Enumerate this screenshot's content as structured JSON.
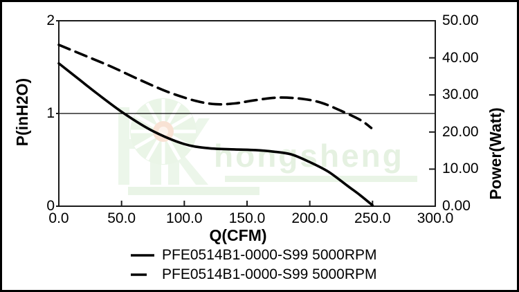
{
  "window": {
    "kind": "fan-performance-curve-figure"
  },
  "colors": {
    "background": "#ffffff",
    "border": "#000000",
    "axis": "#1a1a1a",
    "curve": "#000000",
    "gridline": "#000000"
  },
  "watermark": {
    "text": "hongsheng",
    "text_color": "#e5f1e1",
    "logo_letter_color": "#ecf6ea",
    "logo_wheel_color": "#eaf5e7",
    "logo_center_color": "#f8e2d4",
    "underline_color": "#e9f4e6"
  },
  "chart_data": {
    "type": "line",
    "title": "",
    "xlabel": "Q(CFM)",
    "ylabel_left": "P(inH2O)",
    "ylabel_right": "Power(Watt)",
    "xlim": [
      0,
      300
    ],
    "ylim_left": [
      0,
      2
    ],
    "ylim_right": [
      0,
      50
    ],
    "x_tick_values": [
      0,
      50,
      100,
      150,
      200,
      250,
      300
    ],
    "x_tick_labels": [
      "0.0",
      "50.0",
      "100.0",
      "150.0",
      "200.0",
      "250.0",
      "300.0"
    ],
    "y_left_tick_values": [
      2,
      1,
      0
    ],
    "y_left_tick_labels": [
      "2",
      "1",
      "0"
    ],
    "y_right_tick_values": [
      50,
      40,
      30,
      20,
      10,
      0
    ],
    "y_right_tick_labels": [
      "50.00",
      "40.00",
      "30.00",
      "20.00",
      "10.00",
      "0.00"
    ],
    "horizontal_gridline_at_left_value": 1,
    "grid": "single horizontal line at P=1 only",
    "legend_position": "bottom-center",
    "series": [
      {
        "name": "PFE0514B1-0000-S99 5000RPM",
        "line_style": "solid",
        "axis": "left",
        "color": "#000000",
        "points": [
          [
            0,
            1.54
          ],
          [
            15,
            1.38
          ],
          [
            30,
            1.22
          ],
          [
            52,
            1.0
          ],
          [
            75,
            0.81
          ],
          [
            100,
            0.67
          ],
          [
            120,
            0.625
          ],
          [
            140,
            0.613
          ],
          [
            157,
            0.605
          ],
          [
            170,
            0.59
          ],
          [
            185,
            0.56
          ],
          [
            200,
            0.475
          ],
          [
            215,
            0.37
          ],
          [
            230,
            0.22
          ],
          [
            240,
            0.12
          ],
          [
            250,
            0.01
          ]
        ]
      },
      {
        "name": "PFE0514B1-0000-S99 5000RPM",
        "line_style": "dashed",
        "axis": "right",
        "color": "#000000",
        "points": [
          [
            0,
            43.5
          ],
          [
            20,
            40.7
          ],
          [
            40,
            37.9
          ],
          [
            65,
            34.0
          ],
          [
            87,
            30.8
          ],
          [
            109,
            28.4
          ],
          [
            125,
            27.5
          ],
          [
            140,
            27.7
          ],
          [
            155,
            28.5
          ],
          [
            175,
            29.3
          ],
          [
            195,
            28.9
          ],
          [
            210,
            27.8
          ],
          [
            225,
            25.7
          ],
          [
            240,
            23.3
          ],
          [
            249,
            21.1
          ]
        ]
      }
    ]
  }
}
